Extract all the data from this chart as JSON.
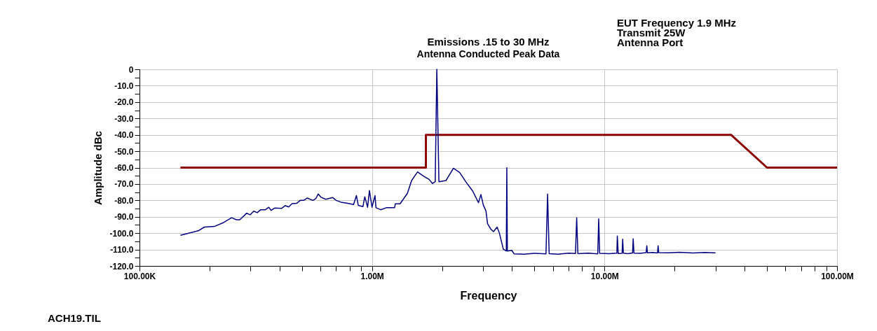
{
  "chart_data": {
    "type": "line",
    "title": "Emissions .15 to 30 MHz",
    "subtitle": "Antenna Conducted Peak Data",
    "xlabel": "Frequency",
    "ylabel": "Amplitude dBc",
    "annotations": [
      "EUT Frequency 1.9 MHz",
      "Transmit 25W",
      "Antenna Port",
      "ACH19.TIL"
    ],
    "log": "x",
    "grid": true,
    "marker": "none",
    "line_style": "solid",
    "xlim": [
      100000,
      100000000
    ],
    "ylim": [
      -120,
      0
    ],
    "xticks": [
      {
        "value": 100000,
        "label": "100.00K"
      },
      {
        "value": 200000,
        "label": null
      },
      {
        "value": 300000,
        "label": null
      },
      {
        "value": 400000,
        "label": null
      },
      {
        "value": 500000,
        "label": null
      },
      {
        "value": 600000,
        "label": null
      },
      {
        "value": 700000,
        "label": null
      },
      {
        "value": 800000,
        "label": null
      },
      {
        "value": 900000,
        "label": null
      },
      {
        "value": 1000000,
        "label": "1.00M"
      },
      {
        "value": 2000000,
        "label": null
      },
      {
        "value": 3000000,
        "label": null
      },
      {
        "value": 4000000,
        "label": null
      },
      {
        "value": 5000000,
        "label": null
      },
      {
        "value": 6000000,
        "label": null
      },
      {
        "value": 7000000,
        "label": null
      },
      {
        "value": 8000000,
        "label": null
      },
      {
        "value": 9000000,
        "label": null
      },
      {
        "value": 10000000,
        "label": "10.00M"
      },
      {
        "value": 20000000,
        "label": null
      },
      {
        "value": 30000000,
        "label": null
      },
      {
        "value": 40000000,
        "label": null
      },
      {
        "value": 50000000,
        "label": null
      },
      {
        "value": 60000000,
        "label": null
      },
      {
        "value": 70000000,
        "label": null
      },
      {
        "value": 80000000,
        "label": null
      },
      {
        "value": 90000000,
        "label": null
      },
      {
        "value": 100000000,
        "label": "100.00M"
      }
    ],
    "yticks": [
      0,
      {
        "value": -5,
        "label": null
      },
      {
        "value": -10,
        "label": "-10.0"
      },
      {
        "value": -15,
        "label": null
      },
      {
        "value": -20,
        "label": "-20.0"
      },
      {
        "value": -25,
        "label": null
      },
      {
        "value": -30,
        "label": "-30.0"
      },
      {
        "value": -35,
        "label": null
      },
      {
        "value": -40,
        "label": "-40.0"
      },
      {
        "value": -45,
        "label": null
      },
      {
        "value": -50,
        "label": "-50.0"
      },
      {
        "value": -55,
        "label": null
      },
      {
        "value": -60,
        "label": "-60.0"
      },
      {
        "value": -65,
        "label": null
      },
      {
        "value": -70,
        "label": "-70.0"
      },
      {
        "value": -75,
        "label": null
      },
      {
        "value": -80,
        "label": "-80.0"
      },
      {
        "value": -85,
        "label": null
      },
      {
        "value": -90,
        "label": "-90.0"
      },
      {
        "value": -95,
        "label": null
      },
      {
        "value": -100,
        "label": "-100.0"
      },
      {
        "value": -105,
        "label": null
      },
      {
        "value": -110,
        "label": "-110.0"
      },
      {
        "value": -115,
        "label": null
      },
      {
        "value": -120,
        "label": "-120.0"
      }
    ],
    "series": [
      {
        "color": "#8b0000",
        "x": [
          150000,
          1705000,
          1705000,
          35000000,
          50000000,
          100000000
        ],
        "values": [
          -60,
          -60,
          -40,
          -40,
          -60,
          -60
        ]
      },
      {
        "color": "#000080",
        "x": [
          150000,
          180000,
          190000,
          210000,
          230000,
          249000,
          261000,
          270000,
          289000,
          299000,
          310000,
          321000,
          332000,
          348000,
          360000,
          368000,
          381000,
          408000,
          423000,
          438000,
          453000,
          474000,
          491000,
          508000,
          526000,
          557000,
          574000,
          587000,
          604000,
          632000,
          678000,
          701000,
          735000,
          778000,
          833000,
          857000,
          873000,
          914000,
          931000,
          957000,
          975000,
          1000000,
          1030000,
          1040000,
          1090000,
          1150000,
          1250000,
          1260000,
          1320000,
          1420000,
          1480000,
          1570000,
          1660000,
          1760000,
          1820000,
          1870000,
          1900000,
          1940000,
          2080000,
          2240000,
          2380000,
          2530000,
          2710000,
          2870000,
          2940000,
          3010000,
          3090000,
          3140000,
          3250000,
          3330000,
          3450000,
          3530000,
          3670000,
          3780000,
          3800000,
          3820000,
          3990000,
          4080000,
          4500000,
          5000000,
          5600000,
          5690000,
          5780000,
          6300000,
          7000000,
          7500000,
          7590000,
          7680000,
          8500000,
          9350000,
          9440000,
          9530000,
          10500000,
          11300000,
          11350000,
          11450000,
          11900000,
          11970000,
          12050000,
          12600000,
          13200000,
          13280000,
          13380000,
          14200000,
          15100000,
          15200000,
          15300000,
          16100000,
          16900000,
          17000000,
          17100000,
          19000000,
          21000000,
          24000000,
          27000000,
          30000000
        ],
        "values": [
          -101.3,
          -98.4,
          -96.3,
          -95.9,
          -93.5,
          -90.6,
          -91.8,
          -91.8,
          -87.8,
          -88.8,
          -86.6,
          -87.5,
          -85.7,
          -85.7,
          -84.2,
          -86.1,
          -84.7,
          -84.9,
          -83.2,
          -84,
          -82,
          -81.8,
          -80,
          -80,
          -78.6,
          -80,
          -78.8,
          -76.1,
          -78.1,
          -79.3,
          -78.3,
          -80,
          -81.1,
          -81.7,
          -82.5,
          -77.1,
          -83.1,
          -83.8,
          -77.8,
          -84.2,
          -74,
          -84.2,
          -77.1,
          -84.5,
          -85.7,
          -84.5,
          -84.5,
          -82.1,
          -82.1,
          -75.7,
          -67.9,
          -62.6,
          -65.1,
          -67.2,
          -69.7,
          -68.6,
          0,
          -68.6,
          -67.9,
          -60.4,
          -62.9,
          -68.6,
          -74.3,
          -81.4,
          -76.4,
          -82.8,
          -86.4,
          -94.2,
          -97.7,
          -99.1,
          -96.3,
          -99.9,
          -109.8,
          -110.9,
          -60.1,
          -110.9,
          -110.5,
          -112.6,
          -112.8,
          -112.3,
          -112.6,
          -76.1,
          -112.5,
          -112.8,
          -112.2,
          -112.4,
          -90.6,
          -112.5,
          -112.2,
          -112.6,
          -91.3,
          -112.3,
          -112.5,
          -112.2,
          -101.7,
          -112.4,
          -112.3,
          -103.7,
          -112.2,
          -112.5,
          -112.1,
          -103.4,
          -112.2,
          -112.3,
          -111.9,
          -107.7,
          -112,
          -111.8,
          -112.1,
          -107.7,
          -111.9,
          -112,
          -111.7,
          -112.1,
          -111.8,
          -112
        ]
      }
    ]
  }
}
